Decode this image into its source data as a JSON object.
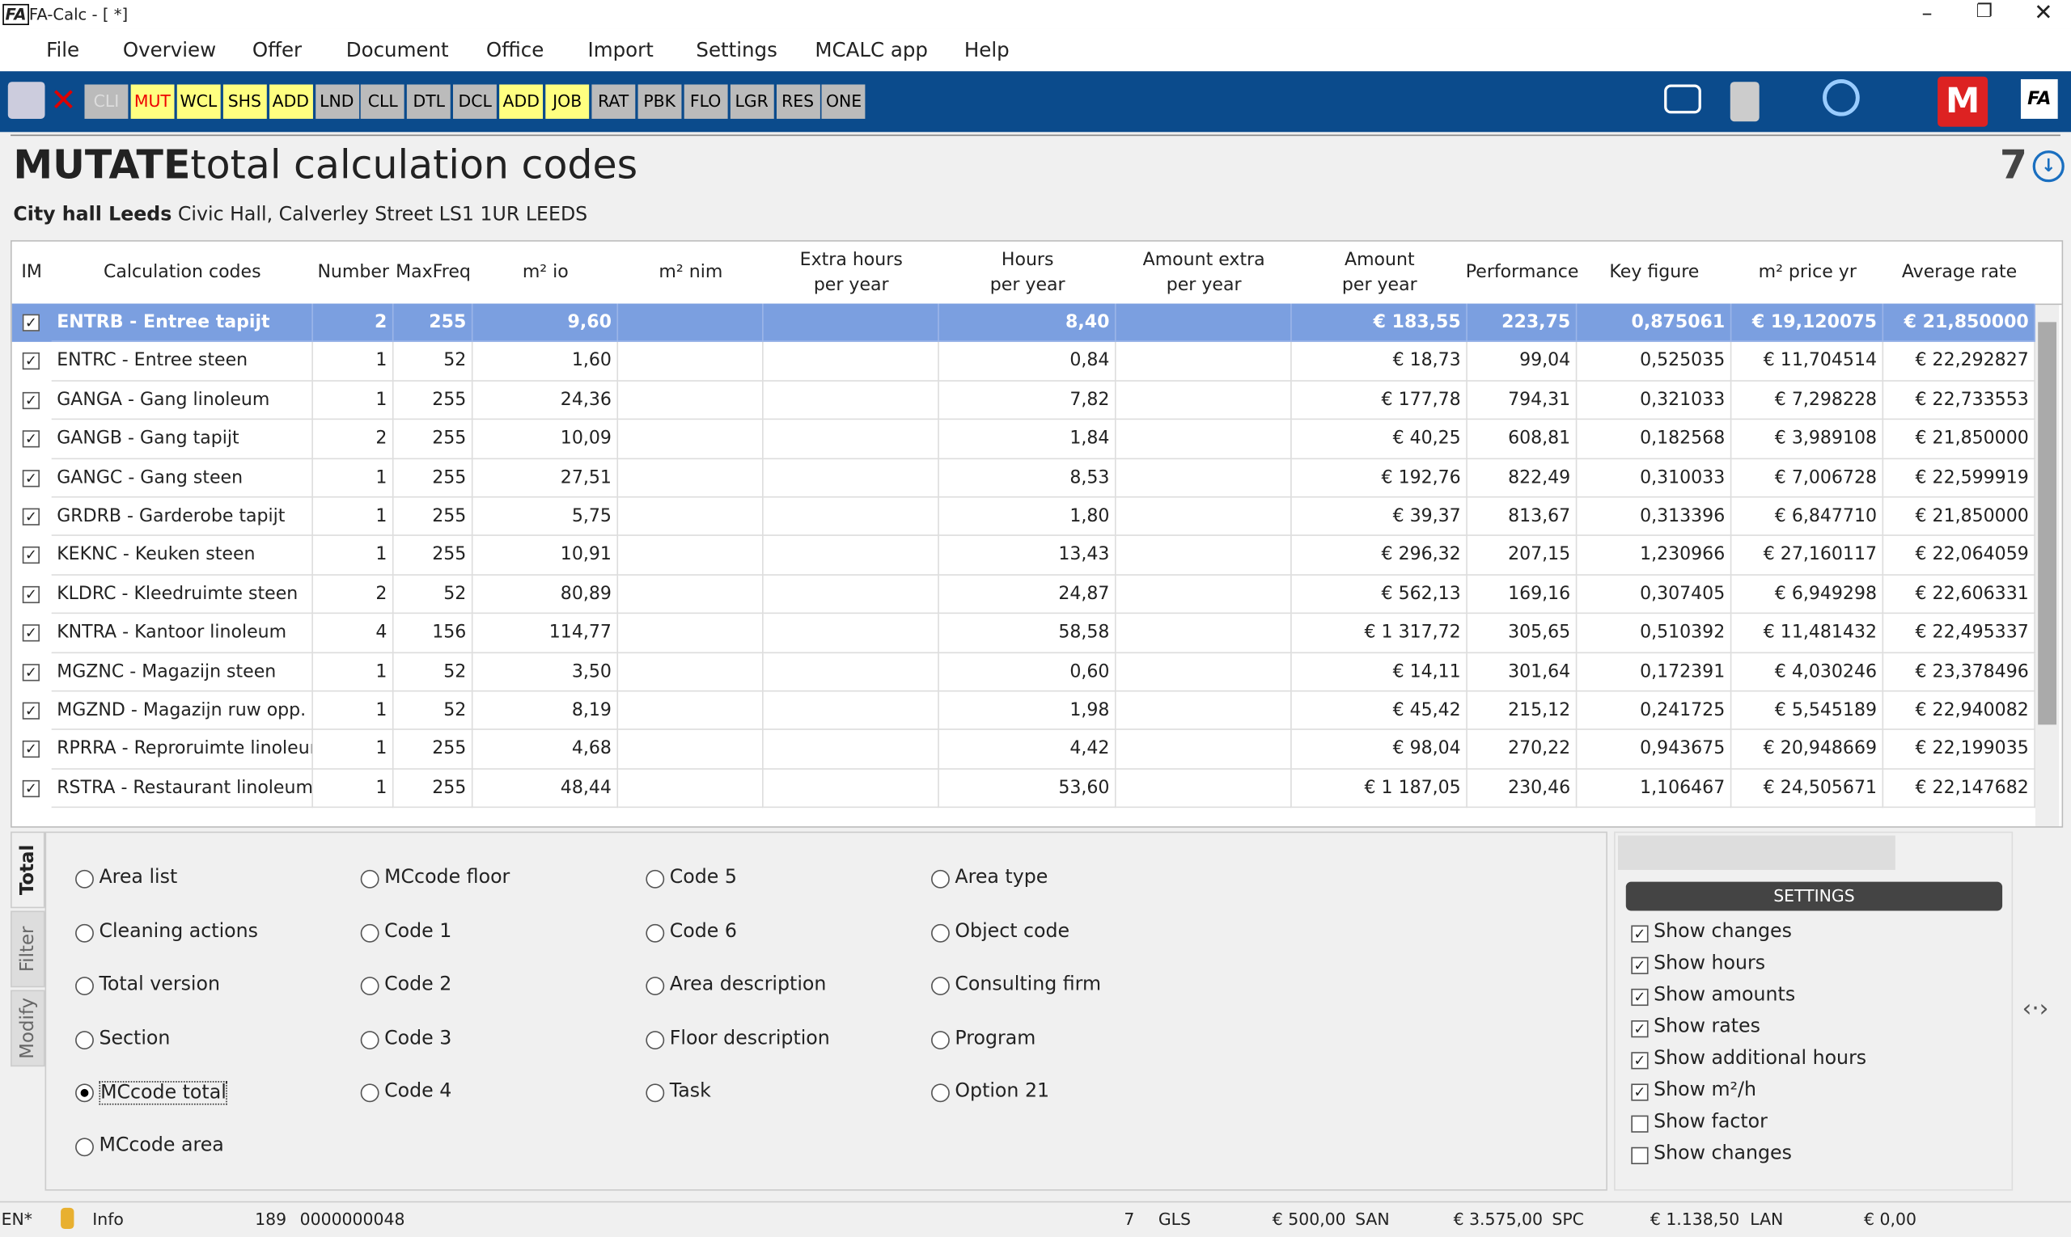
{
  "window": {
    "icon": "FA",
    "title": "FA-Calc - [ *]"
  },
  "menu": [
    "File",
    "Overview",
    "Offer",
    "Document",
    "Office",
    "Import",
    "Settings",
    "MCALC app",
    "Help"
  ],
  "toolbar": [
    {
      "label": "CLI",
      "style": "disabled"
    },
    {
      "label": "MUT",
      "style": "active"
    },
    {
      "label": "WCL",
      "style": "yellow"
    },
    {
      "label": "SHS",
      "style": "yellow"
    },
    {
      "label": "ADD",
      "style": "yellow"
    },
    {
      "label": "LND",
      "style": "grey"
    },
    {
      "label": "CLL",
      "style": "grey"
    },
    {
      "label": "DTL",
      "style": "grey"
    },
    {
      "label": "DCL",
      "style": "grey"
    },
    {
      "label": "ADD",
      "style": "yellow"
    },
    {
      "label": "JOB",
      "style": "yellow"
    },
    {
      "label": "RAT",
      "style": "grey"
    },
    {
      "label": "PBK",
      "style": "grey"
    },
    {
      "label": "FLO",
      "style": "grey"
    },
    {
      "label": "LGR",
      "style": "grey"
    },
    {
      "label": "RES",
      "style": "grey"
    },
    {
      "label": "ONE",
      "style": "grey"
    }
  ],
  "header": {
    "title_bold": "MUTATE",
    "title_rest": "total calculation codes",
    "count": "7",
    "location": "City hall Leeds",
    "address": "Civic Hall, Calverley Street LS1 1UR LEEDS"
  },
  "table": {
    "columns": [
      "IM",
      "Calculation codes",
      "Number",
      "MaxFreq",
      "m² io",
      "m² nim",
      "Extra hours\nper year",
      "Hours\nper year",
      "Amount extra\nper year",
      "Amount\nper year",
      "Performance",
      "Key figure",
      "m² price yr",
      "Average rate"
    ],
    "selected_row": 0,
    "rows": [
      [
        "ENTRB - Entree tapijt",
        "2",
        "255",
        "9,60",
        null,
        null,
        "8,40",
        null,
        "€ 183,55",
        "223,75",
        "0,875061",
        "€ 19,120075",
        "€ 21,850000"
      ],
      [
        "ENTRC - Entree steen",
        "1",
        "52",
        "1,60",
        null,
        null,
        "0,84",
        null,
        "€ 18,73",
        "99,04",
        "0,525035",
        "€ 11,704514",
        "€ 22,292827"
      ],
      [
        "GANGA - Gang linoleum",
        "1",
        "255",
        "24,36",
        null,
        null,
        "7,82",
        null,
        "€ 177,78",
        "794,31",
        "0,321033",
        "€ 7,298228",
        "€ 22,733553"
      ],
      [
        "GANGB - Gang tapijt",
        "2",
        "255",
        "10,09",
        null,
        null,
        "1,84",
        null,
        "€ 40,25",
        "608,81",
        "0,182568",
        "€ 3,989108",
        "€ 21,850000"
      ],
      [
        "GANGC - Gang steen",
        "1",
        "255",
        "27,51",
        null,
        null,
        "8,53",
        null,
        "€ 192,76",
        "822,49",
        "0,310033",
        "€ 7,006728",
        "€ 22,599919"
      ],
      [
        "GRDRB - Garderobe tapijt",
        "1",
        "255",
        "5,75",
        null,
        null,
        "1,80",
        null,
        "€ 39,37",
        "813,67",
        "0,313396",
        "€ 6,847710",
        "€ 21,850000"
      ],
      [
        "KEKNC - Keuken steen",
        "1",
        "255",
        "10,91",
        null,
        null,
        "13,43",
        null,
        "€ 296,32",
        "207,15",
        "1,230966",
        "€ 27,160117",
        "€ 22,064059"
      ],
      [
        "KLDRC - Kleedruimte steen",
        "2",
        "52",
        "80,89",
        null,
        null,
        "24,87",
        null,
        "€ 562,13",
        "169,16",
        "0,307405",
        "€ 6,949298",
        "€ 22,606331"
      ],
      [
        "KNTRA - Kantoor linoleum",
        "4",
        "156",
        "114,77",
        null,
        null,
        "58,58",
        null,
        "€ 1 317,72",
        "305,65",
        "0,510392",
        "€ 11,481432",
        "€ 22,495337"
      ],
      [
        "MGZNC - Magazijn steen",
        "1",
        "52",
        "3,50",
        null,
        null,
        "0,60",
        null,
        "€ 14,11",
        "301,64",
        "0,172391",
        "€ 4,030246",
        "€ 23,378496"
      ],
      [
        "MGZND - Magazijn ruw opp.",
        "1",
        "52",
        "8,19",
        null,
        null,
        "1,98",
        null,
        "€ 45,42",
        "215,12",
        "0,241725",
        "€ 5,545189",
        "€ 22,940082"
      ],
      [
        "RPRRA - Reproruimte linoleum",
        "1",
        "255",
        "4,68",
        null,
        null,
        "4,42",
        null,
        "€ 98,04",
        "270,22",
        "0,943675",
        "€ 20,948669",
        "€ 22,199035"
      ],
      [
        "RSTRA - Restaurant linoleum",
        "1",
        "255",
        "48,44",
        null,
        null,
        "53,60",
        null,
        "€ 1 187,05",
        "230,46",
        "1,106467",
        "€ 24,505671",
        "€ 22,147682"
      ]
    ]
  },
  "tabs": [
    "Total",
    "Filter",
    "Modify"
  ],
  "options": {
    "selected": "MCcode total",
    "columns": [
      [
        "Area list",
        "Cleaning actions",
        "Total version",
        "Section",
        "MCcode total",
        "MCcode area"
      ],
      [
        "MCcode floor",
        "Code 1",
        "Code 2",
        "Code 3",
        "Code 4"
      ],
      [
        "Code 5",
        "Code 6",
        "Area description",
        "Floor description",
        "Task"
      ],
      [
        "Area type",
        "Object code",
        "Consulting firm",
        "Program",
        "Option 21"
      ]
    ]
  },
  "settings": {
    "title": "SETTINGS",
    "items": [
      {
        "label": "Show changes",
        "checked": true
      },
      {
        "label": "Show hours",
        "checked": true
      },
      {
        "label": "Show amounts",
        "checked": true
      },
      {
        "label": "Show rates",
        "checked": true
      },
      {
        "label": "Show additional hours",
        "checked": true
      },
      {
        "label": "Show m²/h",
        "checked": true
      },
      {
        "label": "Show factor",
        "checked": false
      },
      {
        "label": "Show changes",
        "checked": false
      }
    ]
  },
  "status": {
    "language": "EN*",
    "info": "Info",
    "number": "189",
    "id": "0000000048",
    "count": "7",
    "totals": [
      {
        "code": "GLS",
        "amount": "€ 500,00"
      },
      {
        "code": "SAN",
        "amount": "€ 3.575,00"
      },
      {
        "code": "SPC",
        "amount": "€ 1.138,50"
      },
      {
        "code": "LAN",
        "amount": "€ 0,00"
      }
    ]
  }
}
